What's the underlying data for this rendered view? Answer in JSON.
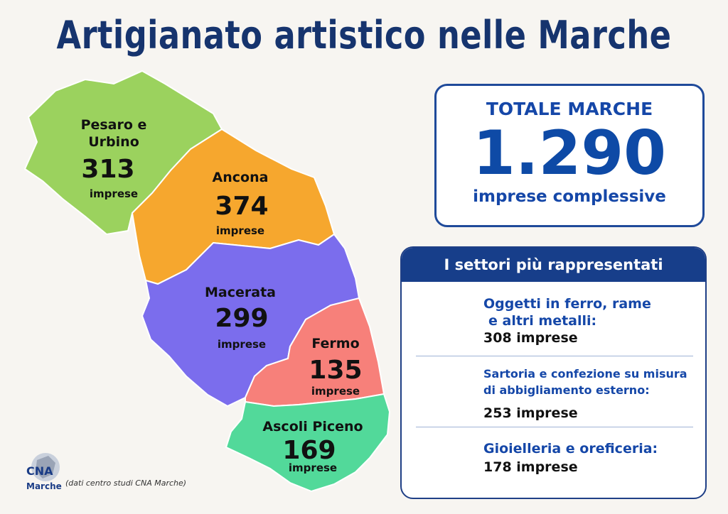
{
  "title": "Artigianato artistico nelle Marche",
  "regions": [
    {
      "name_line1": "Pesaro e",
      "name_line2": "Urbino",
      "value": "313",
      "unit": "imprese",
      "color": "#9bd25e"
    },
    {
      "name_line1": "Ancona",
      "name_line2": "",
      "value": "374",
      "unit": "imprese",
      "color": "#f6a72e"
    },
    {
      "name_line1": "Macerata",
      "name_line2": "",
      "value": "299",
      "unit": "imprese",
      "color": "#7b6ded"
    },
    {
      "name_line1": "Fermo",
      "name_line2": "",
      "value": "135",
      "unit": "imprese",
      "color": "#f7807a"
    },
    {
      "name_line1": "Ascoli Piceno",
      "name_line2": "",
      "value": "169",
      "unit": "imprese",
      "color": "#52d99a"
    }
  ],
  "total": {
    "heading": "TOTALE MARCHE",
    "value": "1.290",
    "subtitle": "imprese complessive"
  },
  "sectors": {
    "heading": "I settori più rappresentati",
    "items": [
      {
        "name_line1": "Oggetti in ferro, rame",
        "name_line2": "e altri metalli:",
        "count": "308 imprese"
      },
      {
        "name_line1": "Sartoria e confezione su misura",
        "name_line2": "di abbigliamento esterno:",
        "count": "253 imprese"
      },
      {
        "name_line1": "Gioielleria e oreficeria:",
        "name_line2": "",
        "count": "178 imprese"
      }
    ]
  },
  "logo": {
    "name": "CNA",
    "sub": "Marche"
  },
  "source_note": "(dati centro studi CNA Marche)"
}
